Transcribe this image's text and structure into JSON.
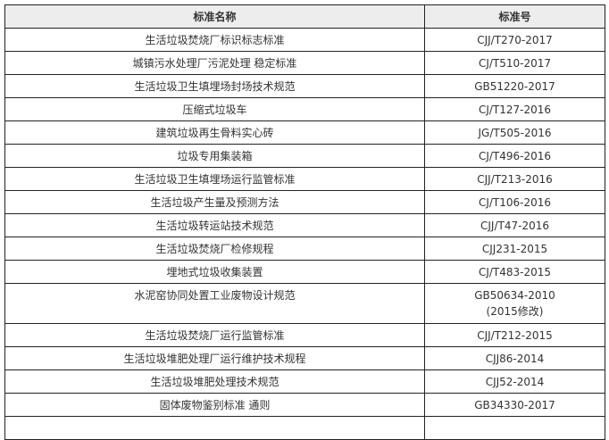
{
  "table": {
    "headers": [
      "标准名称",
      "标准号"
    ],
    "rows": [
      {
        "name": "生活垃圾焚烧厂标识标志标准",
        "code": "CJJ/T270-2017"
      },
      {
        "name": "城镇污水处理厂污泥处理  稳定标准",
        "code": "CJ/T510-2017"
      },
      {
        "name": "生活垃圾卫生填埋场封场技术规范",
        "code": "GB51220-2017"
      },
      {
        "name": "压缩式垃圾车",
        "code": "CJ/T127-2016"
      },
      {
        "name": "建筑垃圾再生骨料实心砖",
        "code": "JG/T505-2016"
      },
      {
        "name": "垃圾专用集装箱",
        "code": "CJ/T496-2016"
      },
      {
        "name": "生活垃圾卫生填埋场运行监管标准",
        "code": "CJJ/T213-2016"
      },
      {
        "name": "生活垃圾产生量及预测方法",
        "code": "CJ/T106-2016"
      },
      {
        "name": "生活垃圾转运站技术规范",
        "code": "CJJ/T47-2016"
      },
      {
        "name": "生活垃圾焚烧厂检修规程",
        "code": "CJJ231-2015"
      },
      {
        "name": "埋地式垃圾收集装置",
        "code": "CJ/T483-2015"
      },
      {
        "name": "水泥窑协同处置工业废物设计规范",
        "code": "GB50634-2010",
        "code_note": "(2015修改)"
      },
      {
        "name": "生活垃圾焚烧厂运行监管标准",
        "code": "CJJ/T212-2015"
      },
      {
        "name": "生活垃圾堆肥处理厂运行维护技术规程",
        "code": "CJJ86-2014"
      },
      {
        "name": "生活垃圾堆肥处理技术规范",
        "code": "CJJ52-2014"
      },
      {
        "name": "固体废物鉴别标准  通则",
        "code": "GB34330-2017"
      }
    ]
  }
}
